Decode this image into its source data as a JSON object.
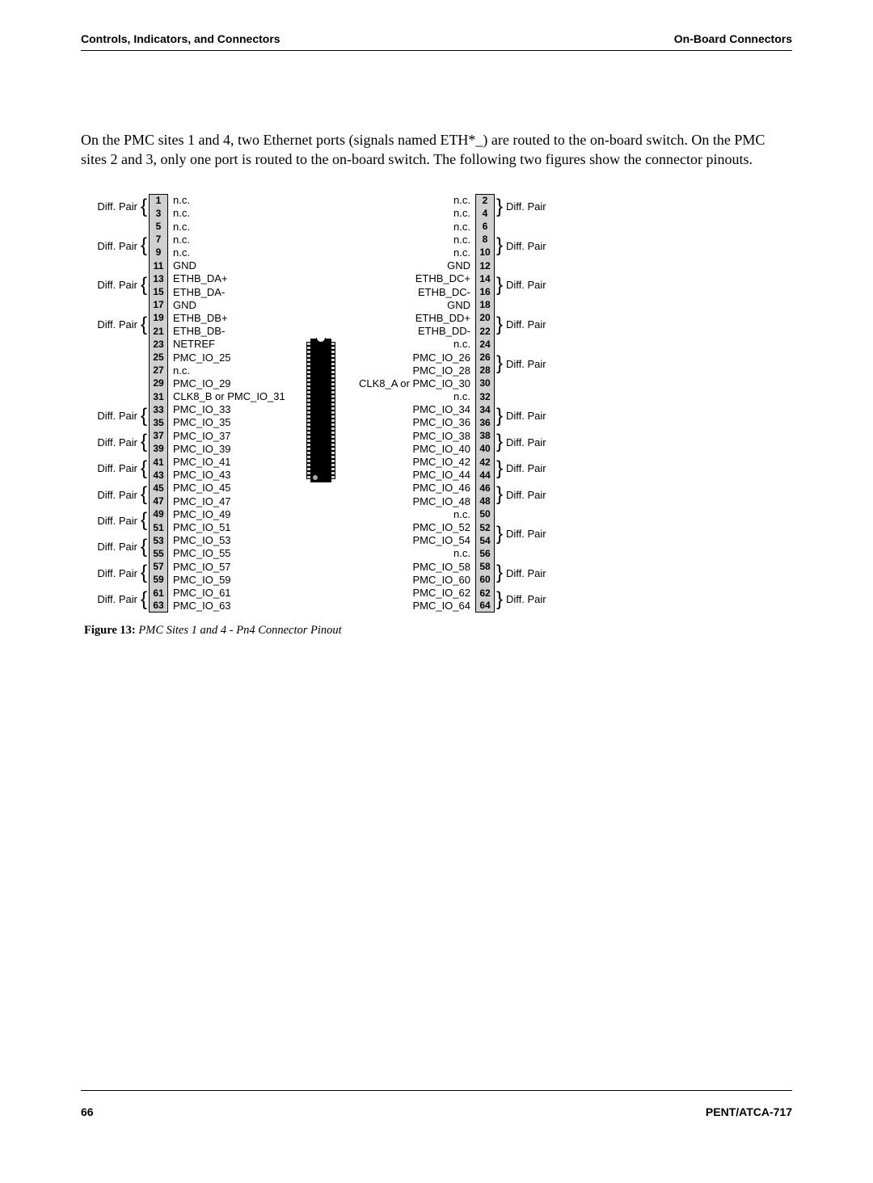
{
  "header": {
    "left": "Controls, Indicators, and Connectors",
    "right": "On-Board Connectors"
  },
  "intro": "On the PMC sites 1 and 4, two Ethernet ports (signals named ETH*_) are routed to the on-board switch. On the PMC sites 2 and 3, only one port is routed to the on-board switch. The following two figures show the connector pinouts.",
  "connector": {
    "chip_body_color": "#000000",
    "pin_bg": "#cfcfcf",
    "row_h": 16.2,
    "rows": [
      {
        "ln": 1,
        "ls": "n.c.",
        "rn": 2,
        "rs": "n.c."
      },
      {
        "ln": 3,
        "ls": "n.c.",
        "rn": 4,
        "rs": "n.c."
      },
      {
        "ln": 5,
        "ls": "n.c.",
        "rn": 6,
        "rs": "n.c."
      },
      {
        "ln": 7,
        "ls": "n.c.",
        "rn": 8,
        "rs": "n.c."
      },
      {
        "ln": 9,
        "ls": "n.c.",
        "rn": 10,
        "rs": "n.c."
      },
      {
        "ln": 11,
        "ls": "GND",
        "rn": 12,
        "rs": "GND"
      },
      {
        "ln": 13,
        "ls": "ETHB_DA+",
        "rn": 14,
        "rs": "ETHB_DC+"
      },
      {
        "ln": 15,
        "ls": "ETHB_DA-",
        "rn": 16,
        "rs": "ETHB_DC-"
      },
      {
        "ln": 17,
        "ls": "GND",
        "rn": 18,
        "rs": "GND"
      },
      {
        "ln": 19,
        "ls": "ETHB_DB+",
        "rn": 20,
        "rs": "ETHB_DD+"
      },
      {
        "ln": 21,
        "ls": "ETHB_DB-",
        "rn": 22,
        "rs": "ETHB_DD-"
      },
      {
        "ln": 23,
        "ls": "NETREF",
        "rn": 24,
        "rs": "n.c."
      },
      {
        "ln": 25,
        "ls": "PMC_IO_25",
        "rn": 26,
        "rs": "PMC_IO_26"
      },
      {
        "ln": 27,
        "ls": "n.c.",
        "rn": 28,
        "rs": "PMC_IO_28"
      },
      {
        "ln": 29,
        "ls": "PMC_IO_29",
        "rn": 30,
        "rs": "CLK8_A or PMC_IO_30"
      },
      {
        "ln": 31,
        "ls": "CLK8_B or PMC_IO_31",
        "rn": 32,
        "rs": "n.c."
      },
      {
        "ln": 33,
        "ls": "PMC_IO_33",
        "rn": 34,
        "rs": "PMC_IO_34"
      },
      {
        "ln": 35,
        "ls": "PMC_IO_35",
        "rn": 36,
        "rs": "PMC_IO_36"
      },
      {
        "ln": 37,
        "ls": "PMC_IO_37",
        "rn": 38,
        "rs": "PMC_IO_38"
      },
      {
        "ln": 39,
        "ls": "PMC_IO_39",
        "rn": 40,
        "rs": "PMC_IO_40"
      },
      {
        "ln": 41,
        "ls": "PMC_IO_41",
        "rn": 42,
        "rs": "PMC_IO_42"
      },
      {
        "ln": 43,
        "ls": "PMC_IO_43",
        "rn": 44,
        "rs": "PMC_IO_44"
      },
      {
        "ln": 45,
        "ls": "PMC_IO_45",
        "rn": 46,
        "rs": "PMC_IO_46"
      },
      {
        "ln": 47,
        "ls": "PMC_IO_47",
        "rn": 48,
        "rs": "PMC_IO_48"
      },
      {
        "ln": 49,
        "ls": "PMC_IO_49",
        "rn": 50,
        "rs": "n.c."
      },
      {
        "ln": 51,
        "ls": "PMC_IO_51",
        "rn": 52,
        "rs": "PMC_IO_52"
      },
      {
        "ln": 53,
        "ls": "PMC_IO_53",
        "rn": 54,
        "rs": "PMC_IO_54"
      },
      {
        "ln": 55,
        "ls": "PMC_IO_55",
        "rn": 56,
        "rs": "n.c."
      },
      {
        "ln": 57,
        "ls": "PMC_IO_57",
        "rn": 58,
        "rs": "PMC_IO_58"
      },
      {
        "ln": 59,
        "ls": "PMC_IO_59",
        "rn": 60,
        "rs": "PMC_IO_60"
      },
      {
        "ln": 61,
        "ls": "PMC_IO_61",
        "rn": 62,
        "rs": "PMC_IO_62"
      },
      {
        "ln": 63,
        "ls": "PMC_IO_63",
        "rn": 64,
        "rs": "PMC_IO_64"
      }
    ],
    "left_pairs": {
      "0": "Diff. Pair",
      "3": "Diff. Pair",
      "6": "Diff. Pair",
      "9": "Diff. Pair",
      "16": "Diff. Pair",
      "18": "Diff. Pair",
      "20": "Diff. Pair",
      "22": "Diff. Pair",
      "24": "Diff. Pair",
      "26": "Diff. Pair",
      "28": "Diff. Pair",
      "30": "Diff. Pair"
    },
    "right_pairs": {
      "0": "Diff. Pair",
      "3": "Diff. Pair",
      "6": "Diff. Pair",
      "9": "Diff. Pair",
      "12": "Diff. Pair",
      "16": "Diff. Pair",
      "18": "Diff. Pair",
      "20": "Diff. Pair",
      "22": "Diff. Pair",
      "25": "Diff. Pair",
      "28": "Diff. Pair",
      "30": "Diff. Pair"
    }
  },
  "caption": {
    "label": "Figure 13:",
    "text": "PMC Sites 1 and 4 - Pn4 Connector Pinout"
  },
  "footer": {
    "page": "66",
    "doc": "PENT/ATCA-717"
  }
}
